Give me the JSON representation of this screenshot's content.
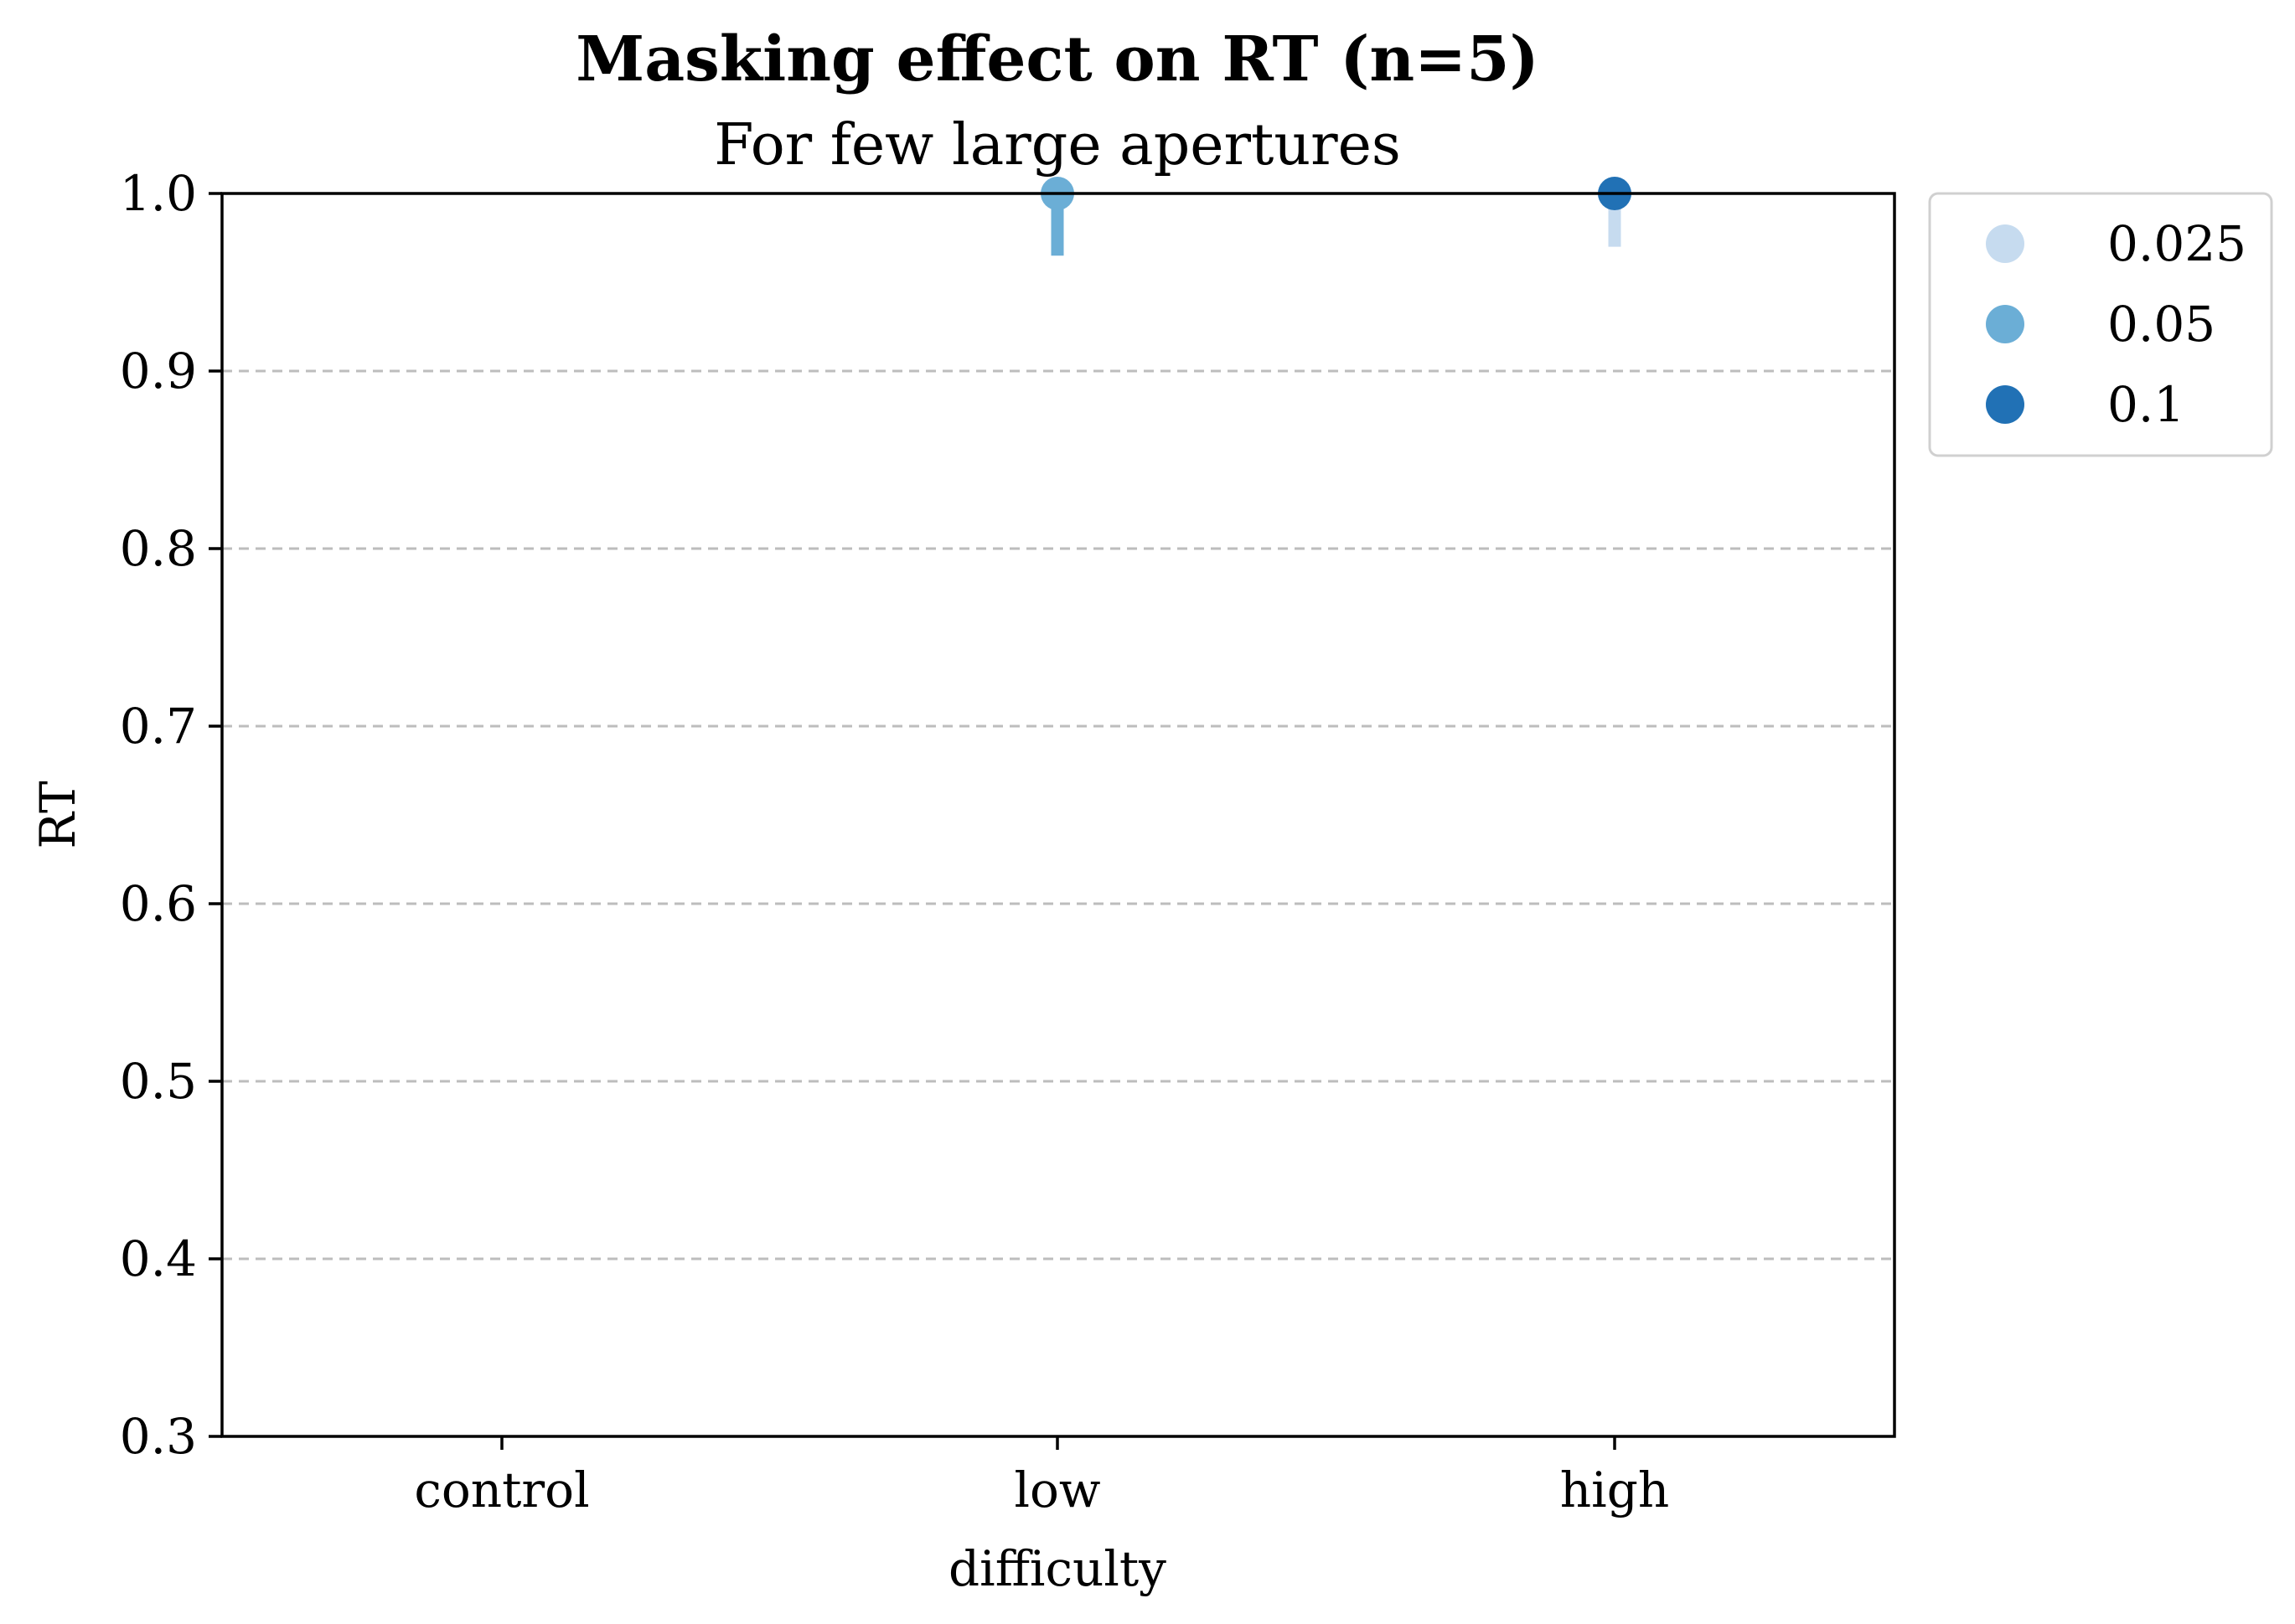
{
  "chart_data": {
    "type": "scatter",
    "title": "Masking effect on RT (n=5)",
    "subtitle": "For few large apertures",
    "xlabel": "difficulty",
    "ylabel": "RT",
    "categories": [
      "control",
      "low",
      "high"
    ],
    "ylim": [
      0.3,
      1.0
    ],
    "yticks": [
      "0.3",
      "0.4",
      "0.5",
      "0.6",
      "0.7",
      "0.8",
      "0.9",
      "1.0"
    ],
    "grid": "horizontal dashed",
    "legend_position": "outside-top-right",
    "series": [
      {
        "name": "0.025",
        "color": "#c6dbef",
        "points": [
          {
            "category": "high",
            "y": 1.0,
            "err_low": 0.97,
            "err_high": 1.0
          }
        ]
      },
      {
        "name": "0.05",
        "color": "#6baed6",
        "points": [
          {
            "category": "low",
            "y": 1.0,
            "err_low": 0.965,
            "err_high": 1.0
          }
        ]
      },
      {
        "name": "0.1",
        "color": "#2171b5",
        "points": [
          {
            "category": "high",
            "y": 1.0,
            "err_low": 0.993,
            "err_high": 1.0
          }
        ]
      }
    ]
  }
}
